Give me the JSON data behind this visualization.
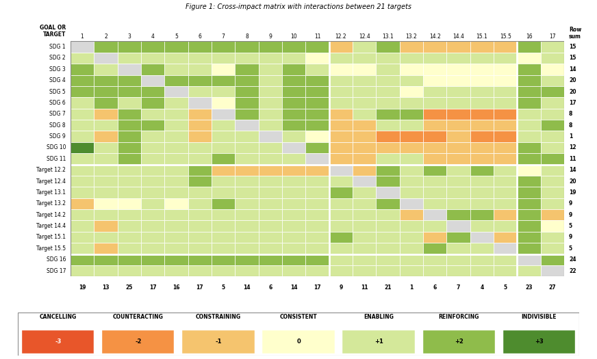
{
  "rows": [
    "SDG 1",
    "SDG 2",
    "SDG 3",
    "SDG 4",
    "SDG 5",
    "SDG 6",
    "SDG 7",
    "SDG 8",
    "SDG 9",
    "SDG 10",
    "SDG 11",
    "Target 12.2",
    "Target 12.4",
    "Target 13.1",
    "Target 13.2",
    "Target 14.2",
    "Target 14.4",
    "Target 15.1",
    "Target 15.5",
    "SDG 16",
    "SDG 17"
  ],
  "cols": [
    "1",
    "2",
    "3",
    "4",
    "5",
    "6",
    "7",
    "8",
    "9",
    "10",
    "11",
    "12.2",
    "12.4",
    "13.1",
    "13.2",
    "14.2",
    "14.4",
    "15.1",
    "15.5",
    "16",
    "17"
  ],
  "row_sums": [
    15,
    15,
    14,
    20,
    20,
    17,
    8,
    8,
    1,
    12,
    11,
    14,
    20,
    19,
    9,
    9,
    5,
    9,
    5,
    24,
    22
  ],
  "col_sums": [
    19,
    13,
    25,
    17,
    16,
    17,
    5,
    14,
    6,
    14,
    17,
    9,
    11,
    21,
    1,
    6,
    7,
    4,
    5,
    23,
    27
  ],
  "matrix": [
    [
      "S",
      2,
      2,
      2,
      2,
      2,
      2,
      2,
      2,
      2,
      2,
      -1,
      1,
      2,
      -1,
      -1,
      -1,
      -1,
      -1,
      2,
      1
    ],
    [
      1,
      "S",
      1,
      1,
      1,
      1,
      1,
      1,
      1,
      1,
      0,
      1,
      1,
      1,
      1,
      1,
      1,
      1,
      1,
      0,
      1
    ],
    [
      2,
      1,
      "S",
      2,
      1,
      1,
      0,
      2,
      1,
      2,
      1,
      0,
      0,
      1,
      0,
      0,
      0,
      0,
      0,
      2,
      0
    ],
    [
      2,
      2,
      2,
      "S",
      2,
      2,
      2,
      2,
      1,
      2,
      2,
      1,
      1,
      1,
      1,
      0,
      0,
      0,
      0,
      2,
      1
    ],
    [
      2,
      2,
      2,
      2,
      "S",
      1,
      1,
      2,
      1,
      2,
      2,
      1,
      1,
      1,
      0,
      1,
      1,
      1,
      1,
      2,
      2
    ],
    [
      1,
      2,
      1,
      2,
      1,
      "S",
      0,
      2,
      1,
      2,
      2,
      1,
      1,
      1,
      1,
      1,
      1,
      1,
      1,
      2,
      1
    ],
    [
      1,
      -1,
      2,
      1,
      1,
      -1,
      "S",
      2,
      1,
      2,
      2,
      -1,
      1,
      2,
      2,
      -2,
      -2,
      -2,
      -2,
      1,
      1
    ],
    [
      1,
      1,
      2,
      2,
      1,
      -1,
      1,
      "S",
      1,
      2,
      2,
      -1,
      -1,
      1,
      1,
      -1,
      -1,
      -1,
      -1,
      1,
      2
    ],
    [
      1,
      -1,
      2,
      1,
      1,
      -1,
      1,
      1,
      "S",
      1,
      0,
      -1,
      -1,
      -2,
      -2,
      -2,
      -1,
      -2,
      -2,
      1,
      1
    ],
    [
      3,
      1,
      2,
      1,
      1,
      1,
      1,
      1,
      1,
      "S",
      2,
      -1,
      -1,
      -1,
      -1,
      -1,
      -1,
      -1,
      -1,
      2,
      1
    ],
    [
      1,
      1,
      2,
      1,
      1,
      1,
      2,
      1,
      1,
      1,
      "S",
      -1,
      -1,
      1,
      1,
      -1,
      -1,
      -1,
      -1,
      2,
      2
    ],
    [
      1,
      1,
      1,
      1,
      1,
      2,
      -1,
      -1,
      -1,
      -1,
      -1,
      "S",
      -1,
      2,
      1,
      2,
      1,
      2,
      1,
      0,
      1
    ],
    [
      1,
      1,
      1,
      1,
      1,
      2,
      1,
      1,
      1,
      1,
      1,
      1,
      "S",
      2,
      1,
      1,
      1,
      1,
      1,
      2,
      1
    ],
    [
      1,
      1,
      1,
      1,
      1,
      1,
      1,
      1,
      1,
      1,
      1,
      2,
      1,
      "S",
      1,
      1,
      1,
      1,
      1,
      2,
      1
    ],
    [
      -1,
      0,
      0,
      1,
      0,
      1,
      2,
      1,
      1,
      1,
      1,
      1,
      1,
      2,
      "S",
      1,
      1,
      1,
      1,
      2,
      1
    ],
    [
      1,
      1,
      1,
      1,
      1,
      1,
      1,
      1,
      1,
      1,
      1,
      1,
      1,
      1,
      -1,
      "S",
      2,
      2,
      -1,
      2,
      -1
    ],
    [
      1,
      -1,
      1,
      1,
      1,
      1,
      1,
      1,
      1,
      1,
      1,
      1,
      1,
      1,
      1,
      1,
      "S",
      1,
      1,
      2,
      0
    ],
    [
      1,
      1,
      1,
      1,
      1,
      1,
      1,
      1,
      1,
      1,
      1,
      2,
      1,
      1,
      1,
      -1,
      2,
      "S",
      -1,
      2,
      1
    ],
    [
      1,
      -1,
      1,
      1,
      1,
      1,
      1,
      1,
      1,
      1,
      1,
      1,
      1,
      1,
      1,
      2,
      1,
      1,
      "S",
      2,
      1
    ],
    [
      2,
      2,
      2,
      2,
      2,
      2,
      2,
      2,
      2,
      2,
      2,
      1,
      1,
      1,
      1,
      1,
      1,
      1,
      1,
      "S",
      2
    ],
    [
      1,
      1,
      1,
      1,
      1,
      1,
      1,
      1,
      1,
      1,
      1,
      1,
      1,
      1,
      1,
      1,
      1,
      1,
      1,
      1,
      "S"
    ]
  ],
  "title": "Figure 1: Cross-impact matrix with interactions between 21 targets",
  "legend_labels": [
    "CANCELLING",
    "COUNTERACTING",
    "CONSTRAINING",
    "CONSISTENT",
    "ENABLING",
    "REINFORCING",
    "INDIVISIBLE"
  ],
  "legend_values": [
    "-3",
    "-2",
    "-1",
    "0",
    "+1",
    "+2",
    "+3"
  ],
  "legend_colors": [
    "#e8562a",
    "#f59244",
    "#f5c46e",
    "#ffffcc",
    "#d4e89a",
    "#8fbc4b",
    "#4e8c2e"
  ]
}
